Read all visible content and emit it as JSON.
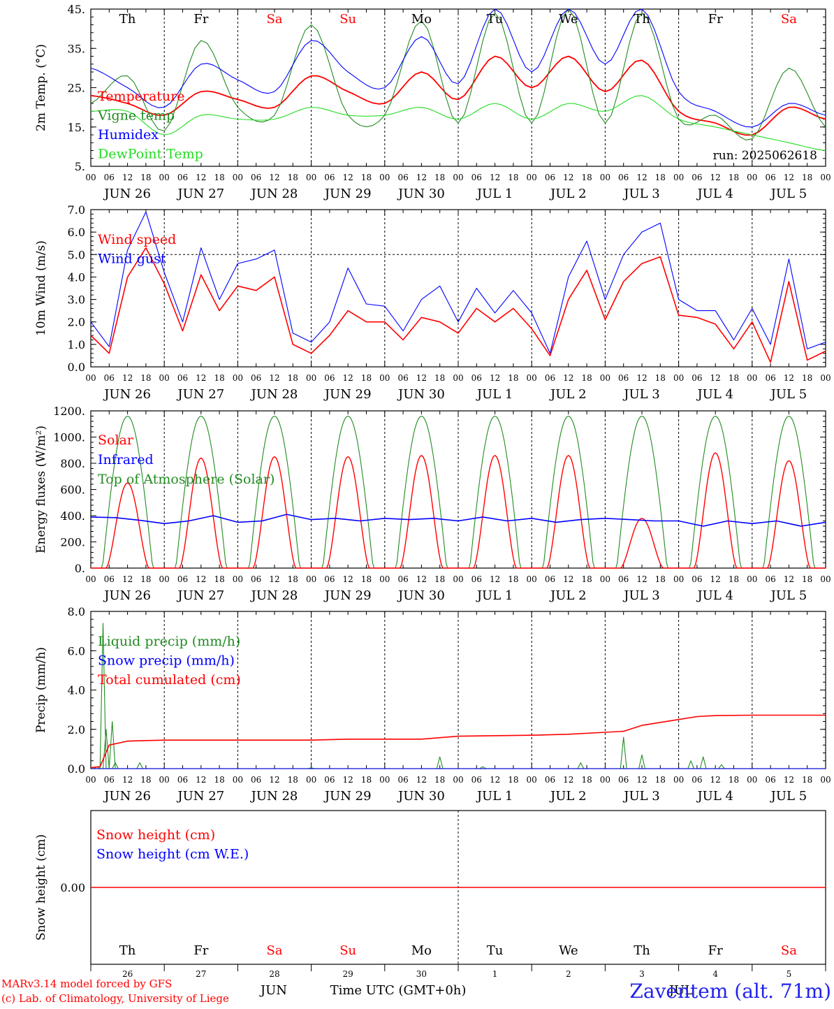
{
  "colors": {
    "red": "#ff0000",
    "green": "#228b22",
    "blue": "#0000ff",
    "lightgreen": "#22dd22",
    "weekend": "#ff0000",
    "weekday": "#000000"
  },
  "days": {
    "weekdays": [
      "Th",
      "Fr",
      "Sa",
      "Su",
      "Mo",
      "Tu",
      "We",
      "Th",
      "Fr",
      "Sa"
    ],
    "weekend": [
      false,
      false,
      true,
      true,
      false,
      false,
      false,
      false,
      false,
      true
    ],
    "dates": [
      "JUN 26",
      "JUN 27",
      "JUN 28",
      "JUN 29",
      "JUN 30",
      "JUL  1",
      "JUL  2",
      "JUL  3",
      "JUL  4",
      "JUL  5"
    ],
    "daynums": [
      "26",
      "27",
      "28",
      "29",
      "30",
      "1",
      "2",
      "3",
      "4",
      "5"
    ],
    "hours": [
      "00",
      "06",
      "12",
      "18"
    ],
    "last_hour": "00"
  },
  "chart_data": [
    {
      "type": "line",
      "ylabel": "2m Temp. (°C)",
      "ylim": [
        5,
        45
      ],
      "yticks": [
        "5.",
        "15.",
        "25.",
        "35.",
        "45."
      ],
      "annotation": "run: 2025062618",
      "x": [
        0,
        12,
        24,
        36,
        48,
        60,
        72,
        84,
        96,
        108,
        120,
        132,
        144,
        156,
        168,
        180,
        192,
        204,
        216,
        228,
        240
      ],
      "series": [
        {
          "name": "Temperature",
          "color": "#ff0000",
          "values": [
            23,
            21,
            18,
            24,
            22,
            20,
            28,
            24,
            21,
            29,
            22,
            33,
            25,
            33,
            24,
            32,
            19,
            16,
            13,
            20,
            17
          ]
        },
        {
          "name": "Vigne temp",
          "color": "#228b22",
          "values": [
            21,
            28,
            14,
            37,
            20,
            18,
            41,
            18,
            18,
            42,
            16,
            44,
            16,
            45,
            16,
            44,
            17,
            18,
            12,
            30,
            15
          ]
        },
        {
          "name": "Humidex",
          "color": "#0000ff",
          "values": [
            30,
            25,
            20,
            31,
            27,
            24,
            37,
            29,
            25,
            38,
            26,
            45,
            29,
            45,
            31,
            45,
            24,
            19,
            15,
            21,
            18
          ]
        },
        {
          "name": "DewPoint Temp",
          "color": "#22dd22",
          "values": [
            19,
            19,
            13,
            18,
            17,
            17,
            20,
            18,
            18,
            20,
            17,
            21,
            17,
            21,
            19,
            23,
            17,
            15,
            13,
            11,
            9
          ]
        }
      ]
    },
    {
      "type": "line",
      "ylabel": "10m Wind (m/s)",
      "ylim": [
        0,
        7
      ],
      "yticks": [
        "0.0",
        "1.0",
        "2.0",
        "3.0",
        "4.0",
        "5.0",
        "6.0",
        "7.0"
      ],
      "x": [
        0,
        6,
        12,
        18,
        24,
        30,
        36,
        42,
        48,
        54,
        60,
        66,
        72,
        78,
        84,
        90,
        96,
        102,
        108,
        114,
        120,
        126,
        132,
        138,
        144,
        150,
        156,
        162,
        168,
        174,
        180,
        186,
        192,
        198,
        204,
        210,
        216,
        222,
        228,
        234,
        240
      ],
      "series": [
        {
          "name": "Wind speed",
          "color": "#ff0000",
          "values": [
            1.4,
            0.6,
            4.0,
            5.3,
            3.7,
            1.6,
            4.1,
            2.5,
            3.6,
            3.4,
            4.0,
            1.0,
            0.6,
            1.4,
            2.5,
            2.0,
            2.0,
            1.2,
            2.2,
            2.0,
            1.5,
            2.6,
            2.0,
            2.6,
            1.7,
            0.5,
            3.0,
            4.3,
            2.1,
            3.8,
            4.6,
            4.9,
            2.3,
            2.2,
            1.9,
            0.8,
            2.0,
            0.2,
            3.8,
            0.3,
            0.7
          ]
        },
        {
          "name": "Wind gust",
          "color": "#0000ff",
          "values": [
            2.0,
            0.9,
            5.2,
            6.9,
            4.2,
            2.0,
            5.3,
            3.0,
            4.6,
            4.8,
            5.2,
            1.5,
            1.1,
            2.0,
            4.4,
            2.8,
            2.7,
            1.6,
            3.0,
            3.6,
            2.0,
            3.5,
            2.4,
            3.4,
            2.4,
            0.6,
            4.0,
            5.6,
            3.0,
            5.0,
            6.0,
            6.4,
            3.0,
            2.5,
            2.5,
            1.2,
            2.6,
            1.0,
            4.8,
            0.8,
            1.1
          ]
        }
      ],
      "reference_line": 5.0
    },
    {
      "type": "line",
      "ylabel": "Energy fluxes (W/m²)",
      "ylim": [
        0,
        1200
      ],
      "yticks": [
        "0.",
        "200.",
        "400.",
        "600.",
        "800.",
        "1000.",
        "1200."
      ],
      "series": [
        {
          "name": "Solar",
          "color": "#ff0000",
          "daily_peaks": [
            650,
            840,
            850,
            850,
            860,
            860,
            860,
            380,
            880,
            820
          ]
        },
        {
          "name": "Infrared",
          "color": "#0000ff",
          "values": [
            390,
            385,
            365,
            340,
            360,
            400,
            350,
            360,
            410,
            370,
            380,
            360,
            380,
            370,
            380,
            360,
            390,
            360,
            380,
            350,
            370,
            380,
            370,
            360,
            360,
            320,
            360,
            340,
            360,
            320,
            350
          ]
        },
        {
          "name": "Top of Atmosphere (Solar)",
          "color": "#228b22",
          "daily_peaks": [
            1160,
            1160,
            1160,
            1160,
            1160,
            1160,
            1160,
            1160,
            1160,
            1160
          ]
        }
      ]
    },
    {
      "type": "line",
      "ylabel": "Precip (mm/h)",
      "ylim": [
        0,
        8
      ],
      "yticks": [
        "0.0",
        "2.0",
        "4.0",
        "6.0",
        "8.0"
      ],
      "series": [
        {
          "name": "Liquid precip (mm/h)",
          "color": "#228b22",
          "spikes": [
            [
              2,
              0.1
            ],
            [
              4,
              7.4
            ],
            [
              5,
              2.0
            ],
            [
              7,
              2.4
            ],
            [
              8,
              0.3
            ],
            [
              16,
              0.3
            ],
            [
              72,
              0.05
            ],
            [
              114,
              0.6
            ],
            [
              128,
              0.1
            ],
            [
              160,
              0.3
            ],
            [
              174,
              1.6
            ],
            [
              180,
              0.7
            ],
            [
              196,
              0.4
            ],
            [
              200,
              0.6
            ],
            [
              206,
              0.2
            ]
          ]
        },
        {
          "name": "Snow precip (mm/h)",
          "color": "#0000ff",
          "values": [
            0,
            0
          ]
        },
        {
          "name": "Total cumulated (cm)",
          "color": "#ff0000",
          "x": [
            0,
            3,
            6,
            12,
            24,
            48,
            72,
            84,
            108,
            120,
            144,
            156,
            168,
            174,
            180,
            192,
            198,
            204,
            216,
            240
          ],
          "values": [
            0.05,
            0.1,
            1.2,
            1.4,
            1.45,
            1.45,
            1.45,
            1.5,
            1.5,
            1.65,
            1.7,
            1.75,
            1.85,
            1.9,
            2.2,
            2.5,
            2.65,
            2.7,
            2.72,
            2.72
          ]
        }
      ]
    },
    {
      "type": "line",
      "ylabel": "Snow height (cm)",
      "yticks": [
        "0.00"
      ],
      "series": [
        {
          "name": "Snow height (cm)",
          "color": "#ff0000",
          "values": [
            0,
            0
          ]
        },
        {
          "name": "Snow height (cm W.E.)",
          "color": "#0000ff",
          "values": [
            0,
            0
          ]
        }
      ]
    }
  ],
  "footer": {
    "credit_line1": "MARv3.14 model forced by GFS",
    "credit_line2": "(c) Lab. of Climatology, University of Liege",
    "month": "JUN",
    "month2": "JUL",
    "xlabel": "Time UTC (GMT+0h)",
    "station": "Zaventem (alt. 71m)"
  }
}
